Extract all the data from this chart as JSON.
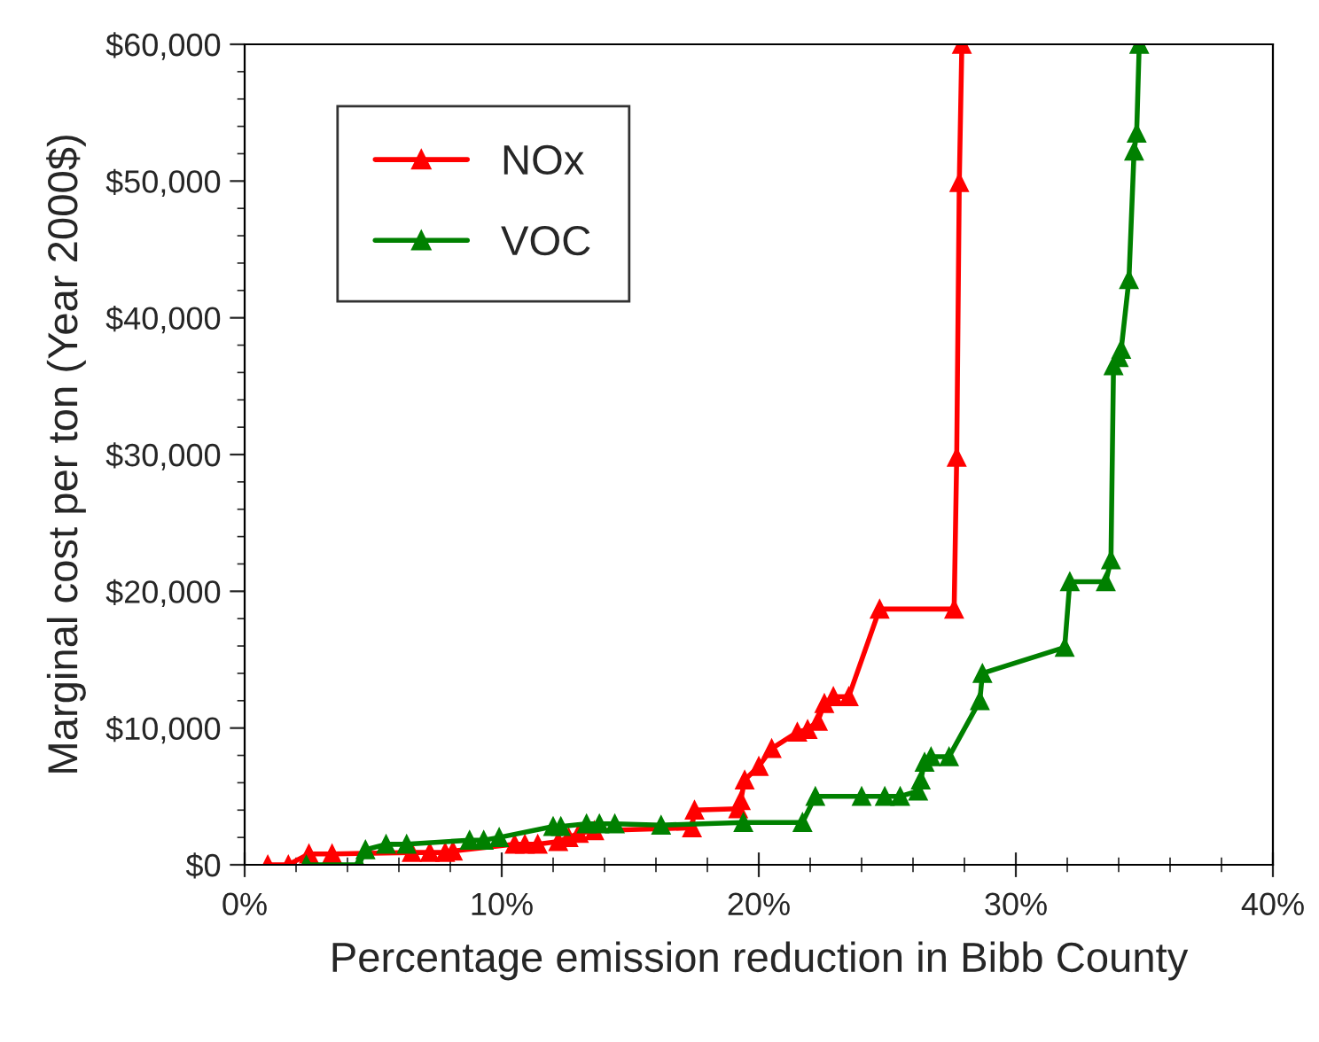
{
  "chart_data": {
    "type": "line",
    "xlabel": "Percentage emission reduction in Bibb County",
    "ylabel": "Marginal cost per ton (Year 2000$)",
    "xlim": [
      0,
      40
    ],
    "xticks": [
      {
        "value": 0,
        "label": "0%"
      },
      {
        "value": 10,
        "label": "10%"
      },
      {
        "value": 20,
        "label": "20%"
      },
      {
        "value": 30,
        "label": "30%"
      },
      {
        "value": 40,
        "label": "40%"
      }
    ],
    "ylim": [
      0,
      60000
    ],
    "yticks": [
      {
        "value": 0,
        "label": "$0"
      },
      {
        "value": 10000,
        "label": "$10,000"
      },
      {
        "value": 20000,
        "label": "$20,000"
      },
      {
        "value": 30000,
        "label": "$30,000"
      },
      {
        "value": 40000,
        "label": "$40,000"
      },
      {
        "value": 50000,
        "label": "$50,000"
      },
      {
        "value": 60000,
        "label": "$60,000"
      }
    ],
    "grid": false,
    "legend": "top left",
    "marker": "triangle",
    "line_style": "solid",
    "series": [
      {
        "name": "NOx",
        "color": "#ff0000",
        "x": [
          0.9,
          1.7,
          2.5,
          3.4,
          6.5,
          7.2,
          7.8,
          8.1,
          10.5,
          10.9,
          11.4,
          12.2,
          12.6,
          13.0,
          13.6,
          17.4,
          17.5,
          19.2,
          19.3,
          19.45,
          20.0,
          20.5,
          21.5,
          21.9,
          22.3,
          22.55,
          22.9,
          23.5,
          24.7,
          27.6,
          27.7,
          27.8,
          27.9
        ],
        "values": [
          0,
          0,
          800,
          800,
          900,
          900,
          900,
          1000,
          1500,
          1500,
          1500,
          1700,
          2000,
          2300,
          2500,
          2700,
          4000,
          4100,
          4700,
          6200,
          7200,
          8500,
          9700,
          9900,
          10500,
          11800,
          12300,
          12300,
          18700,
          18700,
          29800,
          49900,
          60000
        ]
      },
      {
        "name": "VOC",
        "color": "#008000",
        "x": [
          2.4,
          4.45,
          4.7,
          5.5,
          6.3,
          8.75,
          9.3,
          9.9,
          12.0,
          12.3,
          13.3,
          13.8,
          14.4,
          16.2,
          19.4,
          21.7,
          22.2,
          24.0,
          24.9,
          25.5,
          26.2,
          26.3,
          26.45,
          26.7,
          27.4,
          28.6,
          28.7,
          31.9,
          32.1,
          33.5,
          33.7,
          33.8,
          34.0,
          34.1,
          34.4,
          34.6,
          34.7,
          34.8
        ],
        "values": [
          0,
          0,
          1100,
          1500,
          1500,
          1800,
          1800,
          2000,
          2800,
          2800,
          3000,
          3000,
          3000,
          2900,
          3100,
          3100,
          5000,
          5000,
          5000,
          5000,
          5400,
          6200,
          7500,
          7900,
          7900,
          12000,
          14000,
          15900,
          20700,
          20700,
          22300,
          36500,
          37100,
          37700,
          42800,
          52200,
          53500,
          60000
        ]
      }
    ]
  }
}
